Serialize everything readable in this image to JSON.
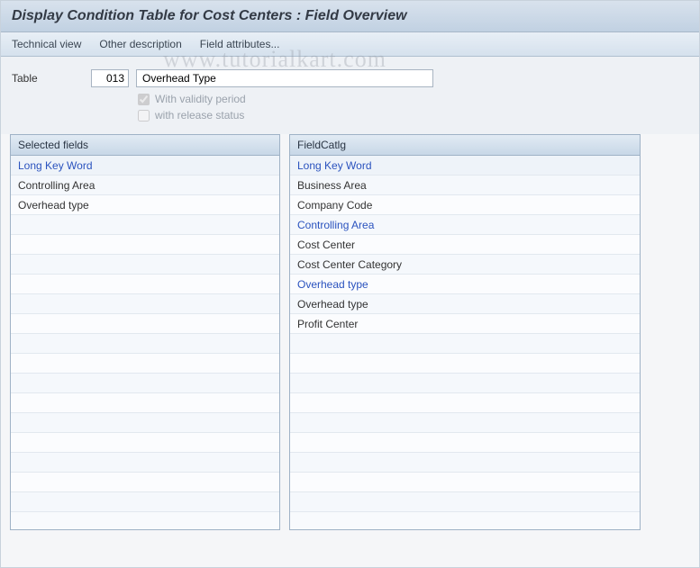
{
  "title": "Display Condition Table for Cost Centers : Field Overview",
  "menu": {
    "technical_view": "Technical view",
    "other_description": "Other description",
    "field_attributes": "Field attributes..."
  },
  "form": {
    "table_label": "Table",
    "table_number": "013",
    "table_name": "Overhead Type",
    "with_validity_label": "With validity period",
    "with_validity_checked": true,
    "with_release_label": "with release status",
    "with_release_checked": false
  },
  "panels": {
    "selected": {
      "header": "Selected fields",
      "key_header": "Long Key Word",
      "rows": [
        {
          "text": "Controlling Area",
          "highlighted": false
        },
        {
          "text": "Overhead type",
          "highlighted": false
        }
      ],
      "empty_rows": 15
    },
    "catalog": {
      "header": "FieldCatlg",
      "key_header": "Long Key Word",
      "rows": [
        {
          "text": "Business Area",
          "highlighted": false
        },
        {
          "text": "Company Code",
          "highlighted": false
        },
        {
          "text": "Controlling Area",
          "highlighted": true
        },
        {
          "text": "Cost Center",
          "highlighted": false
        },
        {
          "text": "Cost Center Category",
          "highlighted": false
        },
        {
          "text": "Overhead type",
          "highlighted": true
        },
        {
          "text": "Overhead type",
          "highlighted": false
        },
        {
          "text": "Profit Center",
          "highlighted": false
        }
      ],
      "empty_rows": 9
    }
  },
  "colors": {
    "title_bg_top": "#d8e2ed",
    "title_bg_bottom": "#c1d1e2",
    "menu_bg_top": "#e8eff6",
    "menu_bg_bottom": "#d5e1ed",
    "panel_border": "#9fb2c6",
    "panel_header_top": "#e2ebf4",
    "panel_header_bottom": "#c7d7e7",
    "link_color": "#2a52be",
    "form_bg": "#eef1f5",
    "row_border": "#e2e8ef"
  },
  "watermark": "www.tutorialkart.com"
}
